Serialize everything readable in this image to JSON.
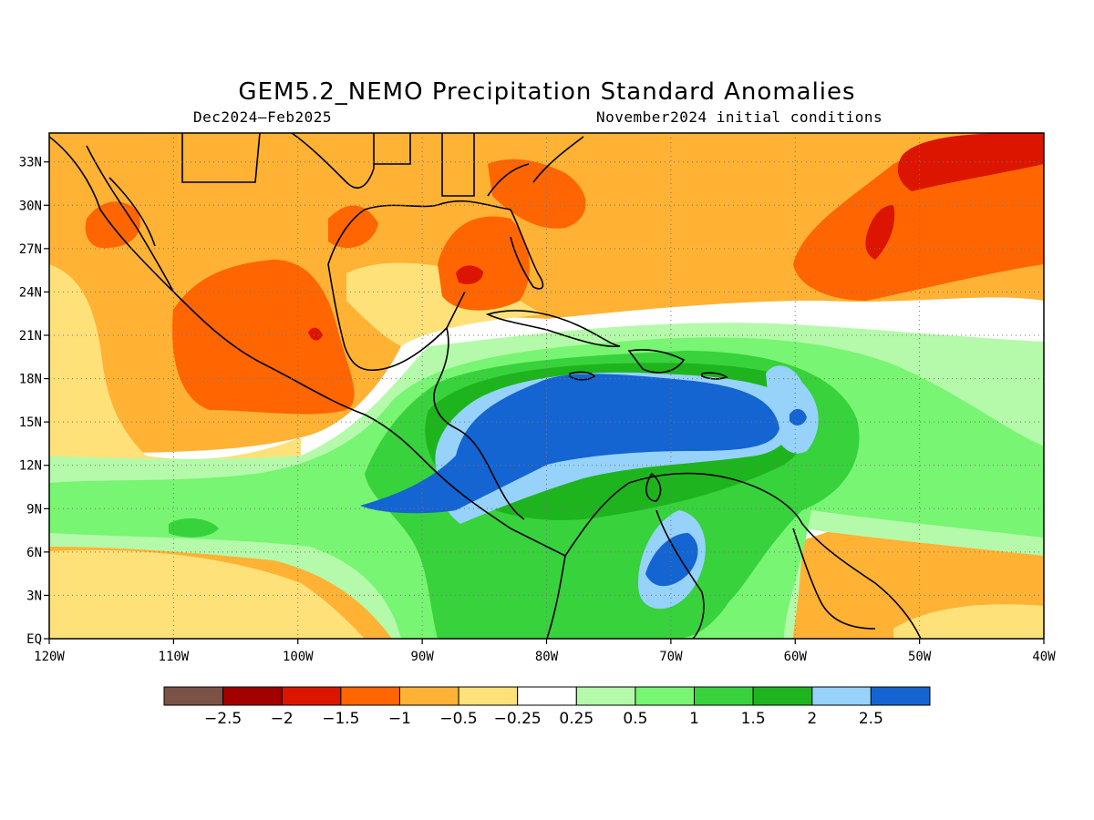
{
  "title": "GEM5.2_NEMO Precipitation Standard Anomalies",
  "period": "Dec2024–Feb2025",
  "initial_conditions": "November2024 initial conditions",
  "map": {
    "lon_range": [
      -120,
      -40
    ],
    "lat_range": [
      0,
      35
    ],
    "lon_ticks": [
      {
        "value": -120,
        "label": "120W"
      },
      {
        "value": -110,
        "label": "110W"
      },
      {
        "value": -100,
        "label": "100W"
      },
      {
        "value": -90,
        "label": "90W"
      },
      {
        "value": -80,
        "label": "80W"
      },
      {
        "value": -70,
        "label": "70W"
      },
      {
        "value": -60,
        "label": "60W"
      },
      {
        "value": -50,
        "label": "50W"
      },
      {
        "value": -40,
        "label": "40W"
      }
    ],
    "lat_ticks": [
      {
        "value": 0,
        "label": "EQ"
      },
      {
        "value": 3,
        "label": "3N"
      },
      {
        "value": 6,
        "label": "6N"
      },
      {
        "value": 9,
        "label": "9N"
      },
      {
        "value": 12,
        "label": "12N"
      },
      {
        "value": 15,
        "label": "15N"
      },
      {
        "value": 18,
        "label": "18N"
      },
      {
        "value": 21,
        "label": "21N"
      },
      {
        "value": 24,
        "label": "24N"
      },
      {
        "value": 27,
        "label": "27N"
      },
      {
        "value": 30,
        "label": "30N"
      },
      {
        "value": 33,
        "label": "33N"
      }
    ],
    "gridlines": true
  },
  "colorbar": {
    "colors": [
      "#7b5246",
      "#a30000",
      "#dc1500",
      "#ff6500",
      "#ffb234",
      "#ffe17a",
      "#ffffff",
      "#b4faaa",
      "#78f572",
      "#37d23c",
      "#1eb41e",
      "#96d2fa",
      "#1464d2"
    ],
    "labels": [
      "−2.5",
      "−2",
      "−1.5",
      "−1",
      "−0.5",
      "−0.25",
      "0.25",
      "0.5",
      "1",
      "1.5",
      "2",
      "2.5"
    ]
  },
  "coastline_color": "#000000"
}
